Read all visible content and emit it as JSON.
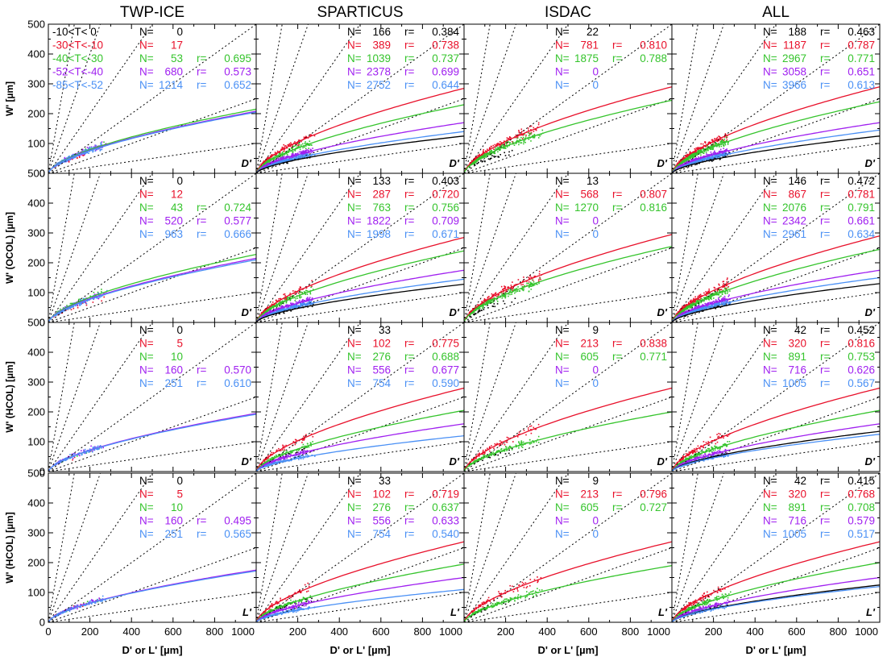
{
  "colors": {
    "T1": "#000000",
    "T2": "#e8102a",
    "T3": "#35c42c",
    "T4": "#a020f0",
    "T5": "#4a90f5"
  },
  "legend": [
    "-10<T<  0",
    "-30<T<-10",
    "-40<T<-30",
    "-52<T<-40",
    "-85<T<-52"
  ],
  "columns": [
    "TWP-ICE",
    "SPARTICUS",
    "ISDAC",
    "ALL"
  ],
  "row_ylabels": [
    "W' [µm]",
    "W' (OCOL) [µm]",
    "W' (HCOL) [µm]",
    "W' (HCOL) [µm]"
  ],
  "row_plot_labels": [
    "D'",
    "D'",
    "D'",
    "L'"
  ],
  "xlabel": "D' or L' [µm]",
  "chart_data": {
    "type": "scatter",
    "xlim": [
      0,
      1000
    ],
    "ylim": [
      0,
      500
    ],
    "x_ticks": [
      "0",
      "200",
      "400",
      "600",
      "800",
      "1000"
    ],
    "y_ticks": [
      "0",
      "100",
      "200",
      "300",
      "400",
      "500"
    ],
    "reference_lines_slopes": [
      0.1,
      0.25,
      0.5,
      1,
      2,
      4
    ],
    "panels": [
      {
        "row": 0,
        "col": 0,
        "stats": [
          {
            "cls": 0,
            "N": "0",
            "r": ""
          },
          {
            "cls": 1,
            "N": "17",
            "r": ""
          },
          {
            "cls": 2,
            "N": "53",
            "r": "0.695"
          },
          {
            "cls": 3,
            "N": "680",
            "r": "0.573"
          },
          {
            "cls": 4,
            "N": "1214",
            "r": "0.652"
          }
        ],
        "fits": [
          {
            "cls": 2,
            "y_at_1000": 215
          },
          {
            "cls": 3,
            "y_at_1000": 208
          },
          {
            "cls": 4,
            "y_at_1000": 205
          }
        ]
      },
      {
        "row": 0,
        "col": 1,
        "stats": [
          {
            "cls": 0,
            "N": "166",
            "r": "0.384"
          },
          {
            "cls": 1,
            "N": "389",
            "r": "0.738"
          },
          {
            "cls": 2,
            "N": "1039",
            "r": "0.737"
          },
          {
            "cls": 3,
            "N": "2378",
            "r": "0.699"
          },
          {
            "cls": 4,
            "N": "2752",
            "r": "0.644"
          }
        ],
        "fits": [
          {
            "cls": 1,
            "y_at_1000": 285
          },
          {
            "cls": 2,
            "y_at_1000": 230
          },
          {
            "cls": 3,
            "y_at_1000": 170
          },
          {
            "cls": 4,
            "y_at_1000": 140
          },
          {
            "cls": 0,
            "y_at_1000": 125
          }
        ]
      },
      {
        "row": 0,
        "col": 2,
        "stats": [
          {
            "cls": 0,
            "N": "22",
            "r": ""
          },
          {
            "cls": 1,
            "N": "781",
            "r": "0.810"
          },
          {
            "cls": 2,
            "N": "1875",
            "r": "0.788"
          },
          {
            "cls": 3,
            "N": "0",
            "r": ""
          },
          {
            "cls": 4,
            "N": "0",
            "r": ""
          }
        ],
        "fits": [
          {
            "cls": 1,
            "y_at_1000": 290
          },
          {
            "cls": 2,
            "y_at_1000": 245
          }
        ]
      },
      {
        "row": 0,
        "col": 3,
        "stats": [
          {
            "cls": 0,
            "N": "188",
            "r": "0.463"
          },
          {
            "cls": 1,
            "N": "1187",
            "r": "0.787"
          },
          {
            "cls": 2,
            "N": "2967",
            "r": "0.771"
          },
          {
            "cls": 3,
            "N": "3058",
            "r": "0.651"
          },
          {
            "cls": 4,
            "N": "3966",
            "r": "0.613"
          }
        ],
        "fits": [
          {
            "cls": 1,
            "y_at_1000": 290
          },
          {
            "cls": 2,
            "y_at_1000": 240
          },
          {
            "cls": 3,
            "y_at_1000": 170
          },
          {
            "cls": 4,
            "y_at_1000": 145
          },
          {
            "cls": 0,
            "y_at_1000": 125
          }
        ]
      },
      {
        "row": 1,
        "col": 0,
        "stats": [
          {
            "cls": 0,
            "N": "0",
            "r": ""
          },
          {
            "cls": 1,
            "N": "12",
            "r": ""
          },
          {
            "cls": 2,
            "N": "43",
            "r": "0.724"
          },
          {
            "cls": 3,
            "N": "520",
            "r": "0.577"
          },
          {
            "cls": 4,
            "N": "963",
            "r": "0.666"
          }
        ],
        "fits": [
          {
            "cls": 2,
            "y_at_1000": 228
          },
          {
            "cls": 3,
            "y_at_1000": 215
          },
          {
            "cls": 4,
            "y_at_1000": 210
          }
        ]
      },
      {
        "row": 1,
        "col": 1,
        "stats": [
          {
            "cls": 0,
            "N": "133",
            "r": "0.403"
          },
          {
            "cls": 1,
            "N": "287",
            "r": "0.720"
          },
          {
            "cls": 2,
            "N": "763",
            "r": "0.756"
          },
          {
            "cls": 3,
            "N": "1822",
            "r": "0.709"
          },
          {
            "cls": 4,
            "N": "1998",
            "r": "0.671"
          }
        ],
        "fits": [
          {
            "cls": 1,
            "y_at_1000": 285
          },
          {
            "cls": 2,
            "y_at_1000": 240
          },
          {
            "cls": 3,
            "y_at_1000": 175
          },
          {
            "cls": 4,
            "y_at_1000": 145
          },
          {
            "cls": 0,
            "y_at_1000": 128
          }
        ]
      },
      {
        "row": 1,
        "col": 2,
        "stats": [
          {
            "cls": 0,
            "N": "13",
            "r": ""
          },
          {
            "cls": 1,
            "N": "568",
            "r": "0.807"
          },
          {
            "cls": 2,
            "N": "1270",
            "r": "0.816"
          },
          {
            "cls": 3,
            "N": "0",
            "r": ""
          },
          {
            "cls": 4,
            "N": "0",
            "r": ""
          }
        ],
        "fits": [
          {
            "cls": 1,
            "y_at_1000": 295
          },
          {
            "cls": 2,
            "y_at_1000": 255
          }
        ]
      },
      {
        "row": 1,
        "col": 3,
        "stats": [
          {
            "cls": 0,
            "N": "146",
            "r": "0.472"
          },
          {
            "cls": 1,
            "N": "867",
            "r": "0.781"
          },
          {
            "cls": 2,
            "N": "2076",
            "r": "0.791"
          },
          {
            "cls": 3,
            "N": "2342",
            "r": "0.661"
          },
          {
            "cls": 4,
            "N": "2961",
            "r": "0.634"
          }
        ],
        "fits": [
          {
            "cls": 1,
            "y_at_1000": 290
          },
          {
            "cls": 2,
            "y_at_1000": 245
          },
          {
            "cls": 3,
            "y_at_1000": 175
          },
          {
            "cls": 4,
            "y_at_1000": 150
          },
          {
            "cls": 0,
            "y_at_1000": 130
          }
        ]
      },
      {
        "row": 2,
        "col": 0,
        "stats": [
          {
            "cls": 0,
            "N": "0",
            "r": ""
          },
          {
            "cls": 1,
            "N": "5",
            "r": ""
          },
          {
            "cls": 2,
            "N": "10",
            "r": ""
          },
          {
            "cls": 3,
            "N": "160",
            "r": "0.570"
          },
          {
            "cls": 4,
            "N": "251",
            "r": "0.610"
          }
        ],
        "fits": [
          {
            "cls": 3,
            "y_at_1000": 195
          },
          {
            "cls": 4,
            "y_at_1000": 192
          }
        ]
      },
      {
        "row": 2,
        "col": 1,
        "stats": [
          {
            "cls": 0,
            "N": "33",
            "r": ""
          },
          {
            "cls": 1,
            "N": "102",
            "r": "0.775"
          },
          {
            "cls": 2,
            "N": "276",
            "r": "0.688"
          },
          {
            "cls": 3,
            "N": "556",
            "r": "0.677"
          },
          {
            "cls": 4,
            "N": "754",
            "r": "0.590"
          }
        ],
        "fits": [
          {
            "cls": 1,
            "y_at_1000": 280
          },
          {
            "cls": 2,
            "y_at_1000": 205
          },
          {
            "cls": 3,
            "y_at_1000": 160
          },
          {
            "cls": 4,
            "y_at_1000": 120
          }
        ]
      },
      {
        "row": 2,
        "col": 2,
        "stats": [
          {
            "cls": 0,
            "N": "9",
            "r": ""
          },
          {
            "cls": 1,
            "N": "213",
            "r": "0.838"
          },
          {
            "cls": 2,
            "N": "605",
            "r": "0.771"
          },
          {
            "cls": 3,
            "N": "0",
            "r": ""
          },
          {
            "cls": 4,
            "N": "0",
            "r": ""
          }
        ],
        "fits": [
          {
            "cls": 1,
            "y_at_1000": 280
          },
          {
            "cls": 2,
            "y_at_1000": 200
          }
        ]
      },
      {
        "row": 2,
        "col": 3,
        "stats": [
          {
            "cls": 0,
            "N": "42",
            "r": "0.452"
          },
          {
            "cls": 1,
            "N": "320",
            "r": "0.816"
          },
          {
            "cls": 2,
            "N": "891",
            "r": "0.753"
          },
          {
            "cls": 3,
            "N": "716",
            "r": "0.626"
          },
          {
            "cls": 4,
            "N": "1005",
            "r": "0.567"
          }
        ],
        "fits": [
          {
            "cls": 1,
            "y_at_1000": 280
          },
          {
            "cls": 2,
            "y_at_1000": 205
          },
          {
            "cls": 3,
            "y_at_1000": 160
          },
          {
            "cls": 0,
            "y_at_1000": 135
          },
          {
            "cls": 4,
            "y_at_1000": 125
          }
        ]
      },
      {
        "row": 3,
        "col": 0,
        "stats": [
          {
            "cls": 0,
            "N": "0",
            "r": ""
          },
          {
            "cls": 1,
            "N": "5",
            "r": ""
          },
          {
            "cls": 2,
            "N": "10",
            "r": ""
          },
          {
            "cls": 3,
            "N": "160",
            "r": "0.495"
          },
          {
            "cls": 4,
            "N": "251",
            "r": "0.565"
          }
        ],
        "fits": [
          {
            "cls": 3,
            "y_at_1000": 175
          },
          {
            "cls": 4,
            "y_at_1000": 172
          }
        ]
      },
      {
        "row": 3,
        "col": 1,
        "stats": [
          {
            "cls": 0,
            "N": "33",
            "r": ""
          },
          {
            "cls": 1,
            "N": "102",
            "r": "0.719"
          },
          {
            "cls": 2,
            "N": "276",
            "r": "0.637"
          },
          {
            "cls": 3,
            "N": "556",
            "r": "0.633"
          },
          {
            "cls": 4,
            "N": "754",
            "r": "0.540"
          }
        ],
        "fits": [
          {
            "cls": 1,
            "y_at_1000": 270
          },
          {
            "cls": 2,
            "y_at_1000": 195
          },
          {
            "cls": 3,
            "y_at_1000": 150
          },
          {
            "cls": 4,
            "y_at_1000": 110
          }
        ]
      },
      {
        "row": 3,
        "col": 2,
        "stats": [
          {
            "cls": 0,
            "N": "9",
            "r": ""
          },
          {
            "cls": 1,
            "N": "213",
            "r": "0.796"
          },
          {
            "cls": 2,
            "N": "605",
            "r": "0.727"
          },
          {
            "cls": 3,
            "N": "0",
            "r": ""
          },
          {
            "cls": 4,
            "N": "0",
            "r": ""
          }
        ],
        "fits": [
          {
            "cls": 1,
            "y_at_1000": 270
          },
          {
            "cls": 2,
            "y_at_1000": 190
          }
        ]
      },
      {
        "row": 3,
        "col": 3,
        "stats": [
          {
            "cls": 0,
            "N": "42",
            "r": "0.415"
          },
          {
            "cls": 1,
            "N": "320",
            "r": "0.768"
          },
          {
            "cls": 2,
            "N": "891",
            "r": "0.708"
          },
          {
            "cls": 3,
            "N": "716",
            "r": "0.579"
          },
          {
            "cls": 4,
            "N": "1005",
            "r": "0.517"
          }
        ],
        "fits": [
          {
            "cls": 1,
            "y_at_1000": 270
          },
          {
            "cls": 2,
            "y_at_1000": 200
          },
          {
            "cls": 3,
            "y_at_1000": 150
          },
          {
            "cls": 0,
            "y_at_1000": 125
          },
          {
            "cls": 4,
            "y_at_1000": 120
          }
        ]
      }
    ]
  }
}
